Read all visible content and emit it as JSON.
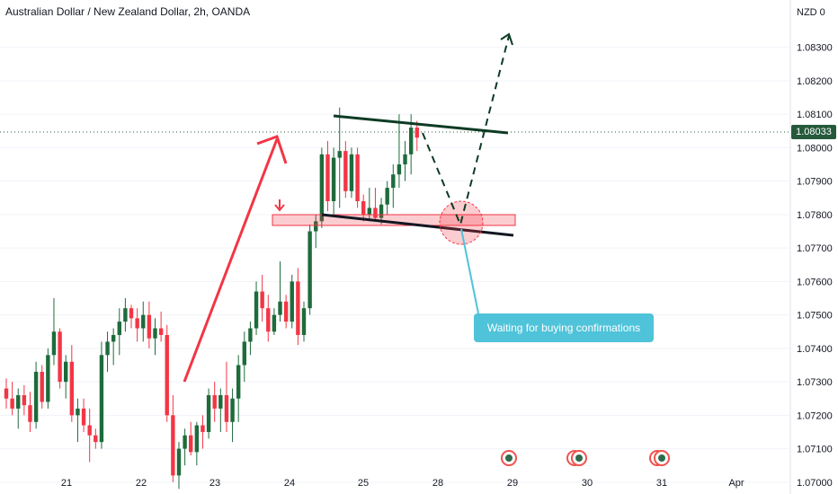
{
  "title": "Australian Dollar / New Zealand Dollar, 2h, OANDA",
  "currency": "NZD",
  "currency_suffix": "0",
  "callout_text": "Waiting for buying confirmations",
  "current_price": "1.08033",
  "colors": {
    "up": "#26a69a",
    "down": "#ef5350",
    "up_dark": "#1e6b3c",
    "arrow": "#f23645",
    "line": "#0d3b23"
  },
  "chart_data": {
    "type": "candlestick",
    "title": "Australian Dollar / New Zealand Dollar, 2h, OANDA",
    "ylim": [
      1.0697,
      1.0842
    ],
    "y_ticks": [
      "1.08300",
      "1.08200",
      "1.08100",
      "1.08000",
      "1.07900",
      "1.07800",
      "1.07700",
      "1.07600",
      "1.07500",
      "1.07400",
      "1.07300",
      "1.07200",
      "1.07100",
      "1.07000"
    ],
    "x_ticks": [
      "21",
      "22",
      "23",
      "24",
      "25",
      "28",
      "29",
      "30",
      "31",
      "Apr"
    ],
    "candles": [
      [
        1.0728,
        1.0731,
        1.0722,
        1.0725
      ],
      [
        1.0725,
        1.073,
        1.072,
        1.0722
      ],
      [
        1.0722,
        1.0728,
        1.0716,
        1.0726
      ],
      [
        1.0726,
        1.0729,
        1.072,
        1.0723
      ],
      [
        1.0723,
        1.0727,
        1.0715,
        1.0718
      ],
      [
        1.0718,
        1.0736,
        1.0716,
        1.0733
      ],
      [
        1.0733,
        1.0735,
        1.0722,
        1.0724
      ],
      [
        1.0724,
        1.074,
        1.0722,
        1.0738
      ],
      [
        1.0738,
        1.0755,
        1.0735,
        1.0745
      ],
      [
        1.0745,
        1.0746,
        1.0728,
        1.073
      ],
      [
        1.073,
        1.0738,
        1.0725,
        1.0736
      ],
      [
        1.0736,
        1.0741,
        1.0718,
        1.072
      ],
      [
        1.072,
        1.0725,
        1.0712,
        1.0722
      ],
      [
        1.0722,
        1.0725,
        1.0715,
        1.0717
      ],
      [
        1.0717,
        1.0722,
        1.0706,
        1.0714
      ],
      [
        1.0714,
        1.0716,
        1.071,
        1.0712
      ],
      [
        1.0712,
        1.0742,
        1.071,
        1.0738
      ],
      [
        1.0738,
        1.0745,
        1.0733,
        1.0742
      ],
      [
        1.0742,
        1.0746,
        1.0735,
        1.0744
      ],
      [
        1.0744,
        1.0752,
        1.0738,
        1.0748
      ],
      [
        1.0748,
        1.0755,
        1.0745,
        1.0752
      ],
      [
        1.0752,
        1.0753,
        1.0746,
        1.0749
      ],
      [
        1.0749,
        1.0752,
        1.0742,
        1.0746
      ],
      [
        1.0746,
        1.0754,
        1.0742,
        1.075
      ],
      [
        1.075,
        1.0754,
        1.074,
        1.0743
      ],
      [
        1.0743,
        1.0749,
        1.0738,
        1.0746
      ],
      [
        1.0746,
        1.0751,
        1.0742,
        1.0744
      ],
      [
        1.0744,
        1.0747,
        1.0718,
        1.072
      ],
      [
        1.072,
        1.0726,
        1.07,
        1.0702
      ],
      [
        1.0702,
        1.0712,
        1.0698,
        1.071
      ],
      [
        1.071,
        1.0716,
        1.0705,
        1.0714
      ],
      [
        1.0714,
        1.0718,
        1.0708,
        1.0709
      ],
      [
        1.0709,
        1.0718,
        1.0705,
        1.0717
      ],
      [
        1.0717,
        1.072,
        1.071,
        1.0715
      ],
      [
        1.0715,
        1.0728,
        1.0713,
        1.0726
      ],
      [
        1.0726,
        1.073,
        1.0718,
        1.0722
      ],
      [
        1.0722,
        1.0728,
        1.0715,
        1.0726
      ],
      [
        1.0726,
        1.0736,
        1.0715,
        1.0718
      ],
      [
        1.0718,
        1.0728,
        1.0712,
        1.0725
      ],
      [
        1.0725,
        1.0738,
        1.0718,
        1.0735
      ],
      [
        1.0735,
        1.0745,
        1.073,
        1.0742
      ],
      [
        1.0742,
        1.0748,
        1.0738,
        1.0746
      ],
      [
        1.0746,
        1.076,
        1.0744,
        1.0757
      ],
      [
        1.0757,
        1.0762,
        1.0748,
        1.0752
      ],
      [
        1.0752,
        1.0756,
        1.0742,
        1.0745
      ],
      [
        1.0745,
        1.0752,
        1.0744,
        1.075
      ],
      [
        1.075,
        1.0766,
        1.0748,
        1.0754
      ],
      [
        1.0754,
        1.0756,
        1.0746,
        1.0748
      ],
      [
        1.0748,
        1.0762,
        1.0746,
        1.076
      ],
      [
        1.076,
        1.0764,
        1.0741,
        1.0744
      ],
      [
        1.0744,
        1.0754,
        1.0742,
        1.0752
      ],
      [
        1.0752,
        1.0777,
        1.075,
        1.0775
      ],
      [
        1.0775,
        1.078,
        1.077,
        1.0778
      ],
      [
        1.0778,
        1.08,
        1.0776,
        1.0798
      ],
      [
        1.0798,
        1.0802,
        1.0781,
        1.0784
      ],
      [
        1.0784,
        1.08,
        1.078,
        1.0797
      ],
      [
        1.0797,
        1.0812,
        1.0782,
        1.0799
      ],
      [
        1.0799,
        1.0802,
        1.0785,
        1.0787
      ],
      [
        1.0787,
        1.08,
        1.0785,
        1.0798
      ],
      [
        1.0798,
        1.08,
        1.0782,
        1.0784
      ],
      [
        1.0784,
        1.0786,
        1.0778,
        1.078
      ],
      [
        1.078,
        1.0788,
        1.0778,
        1.0782
      ],
      [
        1.0782,
        1.0788,
        1.0778,
        1.0779
      ],
      [
        1.0779,
        1.0785,
        1.0777,
        1.0783
      ],
      [
        1.0783,
        1.079,
        1.078,
        1.0788
      ],
      [
        1.0788,
        1.0795,
        1.0782,
        1.0792
      ],
      [
        1.0792,
        1.081,
        1.0788,
        1.0795
      ],
      [
        1.0795,
        1.0802,
        1.079,
        1.0798
      ],
      [
        1.0798,
        1.081,
        1.0792,
        1.0806
      ],
      [
        1.0806,
        1.0808,
        1.0799,
        1.0803
      ]
    ],
    "annotations": {
      "upper_line": [
        [
          1.08113,
          0
        ],
        [
          1.08053,
          1
        ]
      ],
      "support_zone": [
        1.07775,
        1.07762
      ],
      "target_price": 1.0834
    }
  }
}
